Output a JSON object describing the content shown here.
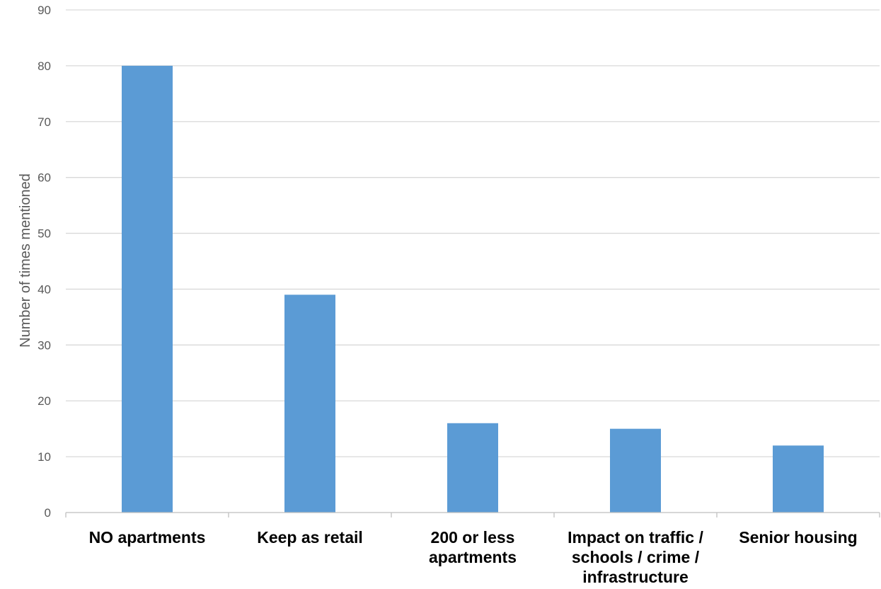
{
  "chart_data": {
    "type": "bar",
    "categories": [
      [
        "NO apartments"
      ],
      [
        "Keep as retail"
      ],
      [
        "200 or less",
        "apartments"
      ],
      [
        "Impact on traffic /",
        "schools / crime /",
        "infrastructure"
      ],
      [
        "Senior housing"
      ]
    ],
    "values": [
      80,
      39,
      16,
      15,
      12
    ],
    "ylabel": "Number of times mentioned",
    "ylim": [
      0,
      90
    ],
    "yticks": [
      0,
      10,
      20,
      30,
      40,
      50,
      60,
      70,
      80,
      90
    ],
    "grid": true,
    "bar_color": "#5b9bd5"
  }
}
